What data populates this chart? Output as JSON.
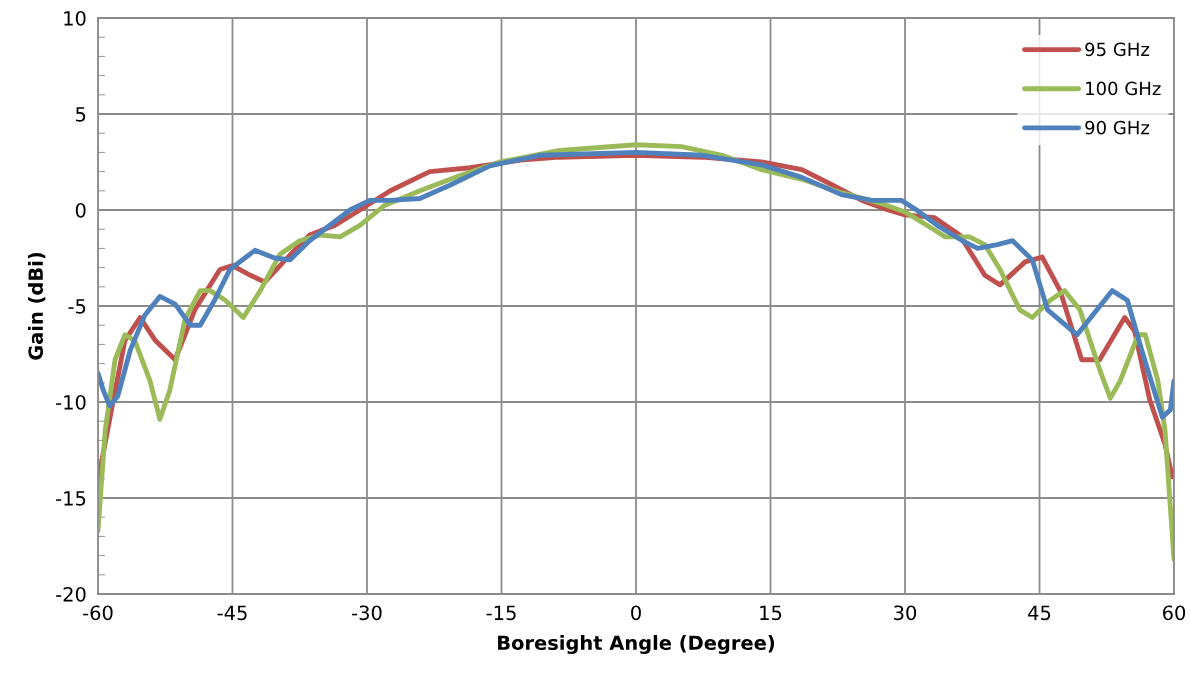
{
  "chart_data": {
    "type": "line",
    "xlabel": "Boresight Angle (Degree)",
    "ylabel": "Gain (dBi)",
    "xlim": [
      -60,
      60
    ],
    "xticks": [
      -60,
      -45,
      -30,
      -15,
      0,
      15,
      30,
      45,
      60
    ],
    "ylim": [
      -20,
      10
    ],
    "yticks": [
      -20,
      {
        "value": -19,
        "label": null
      },
      {
        "value": -18,
        "label": null
      },
      {
        "value": -17,
        "label": null
      },
      {
        "value": -16,
        "label": null
      },
      -15,
      {
        "value": -14,
        "label": null
      },
      {
        "value": -13,
        "label": null
      },
      {
        "value": -12,
        "label": null
      },
      {
        "value": -11,
        "label": null
      },
      -10,
      {
        "value": -9,
        "label": null
      },
      {
        "value": -8,
        "label": null
      },
      {
        "value": -7,
        "label": null
      },
      {
        "value": -6,
        "label": null
      },
      -5,
      {
        "value": -4,
        "label": null
      },
      {
        "value": -3,
        "label": null
      },
      {
        "value": -2,
        "label": null
      },
      {
        "value": -1,
        "label": null
      },
      0,
      {
        "value": 1,
        "label": null
      },
      {
        "value": 2,
        "label": null
      },
      {
        "value": 3,
        "label": null
      },
      {
        "value": 4,
        "label": null
      },
      5,
      {
        "value": 6,
        "label": null
      },
      {
        "value": 7,
        "label": null
      },
      {
        "value": 8,
        "label": null
      },
      {
        "value": 9,
        "label": null
      },
      10
    ],
    "grid": true,
    "legend": "top right",
    "line_style": "solid",
    "marker": "none",
    "series": [
      {
        "name": "95 GHz",
        "color": "#c0504d",
        "x": [
          -60,
          -58.7,
          -57,
          -55.3,
          -53.6,
          -51.4,
          -49.2,
          -46.4,
          -45,
          -43,
          -41.4,
          -39.1,
          -36.4,
          -33.6,
          -30.8,
          -27.4,
          -23,
          -18.5,
          -12.9,
          -8.5,
          0,
          7.4,
          14,
          18.5,
          21.9,
          25.2,
          27.5,
          30,
          33.3,
          36.1,
          38.9,
          40.6,
          43.4,
          45.3,
          47.3,
          49.7,
          51.7,
          54.5,
          55.6,
          57.3,
          59,
          59.8
        ],
        "values": [
          -14.1,
          -10.9,
          -6.8,
          -5.6,
          -6.8,
          -7.8,
          -5.2,
          -3.1,
          -2.9,
          -3.4,
          -3.75,
          -2.6,
          -1.3,
          -0.8,
          0,
          1.0,
          2.0,
          2.2,
          2.6,
          2.75,
          2.85,
          2.75,
          2.5,
          2.1,
          1.3,
          0.5,
          0.1,
          -0.25,
          -0.4,
          -1.3,
          -3.4,
          -3.9,
          -2.7,
          -2.45,
          -4.2,
          -7.8,
          -7.8,
          -5.6,
          -6.3,
          -9.9,
          -12.2,
          -13.9
        ]
      },
      {
        "name": "100 GHz",
        "color": "#9bbb59",
        "x": [
          -60,
          -59.2,
          -58.1,
          -57,
          -55.9,
          -54.2,
          -53.1,
          -52,
          -50.3,
          -48.6,
          -47.5,
          -45.8,
          -43.8,
          -41.9,
          -39.7,
          -37.5,
          -35.2,
          -33,
          -30.8,
          -28,
          -24.1,
          -19.6,
          -15.2,
          -8.5,
          0,
          5.1,
          9.6,
          14,
          18.5,
          22.9,
          27.3,
          30,
          32.8,
          34.5,
          37.2,
          38.9,
          40.6,
          42.8,
          44.2,
          46.2,
          47.8,
          49.5,
          51.7,
          52.9,
          54,
          56,
          56.8,
          58.2,
          59,
          60
        ],
        "values": [
          -16.7,
          -11.5,
          -7.8,
          -6.5,
          -6.8,
          -8.9,
          -10.9,
          -9.4,
          -5.7,
          -4.2,
          -4.2,
          -4.7,
          -5.6,
          -4.2,
          -2.3,
          -1.6,
          -1.3,
          -1.4,
          -0.8,
          0.25,
          1.0,
          1.8,
          2.5,
          3.1,
          3.4,
          3.3,
          2.85,
          2.1,
          1.6,
          0.9,
          0.35,
          -0.1,
          -0.9,
          -1.4,
          -1.4,
          -1.8,
          -3.1,
          -5.2,
          -5.6,
          -4.7,
          -4.2,
          -5.2,
          -8.3,
          -9.8,
          -8.9,
          -6.5,
          -6.5,
          -8.9,
          -11.5,
          -18.2
        ]
      },
      {
        "name": "90 GHz",
        "color": "#4f81bd",
        "x": [
          -60,
          -59.4,
          -58.7,
          -57.8,
          -56.4,
          -54.8,
          -53.1,
          -51.4,
          -49.7,
          -48.6,
          -47,
          -45.3,
          -42.5,
          -40.3,
          -38.6,
          -36.4,
          -33.6,
          -31.9,
          -29.7,
          -27.4,
          -24.1,
          -20.7,
          -16.3,
          -10.7,
          0,
          7.4,
          14,
          18.5,
          22.9,
          26.3,
          29.6,
          31.3,
          33.6,
          36.4,
          38.1,
          40.3,
          42,
          44.2,
          45.9,
          49.2,
          50.9,
          53.1,
          54.8,
          56.4,
          58.7,
          59.6,
          60
        ],
        "values": [
          -8.5,
          -9.4,
          -10.2,
          -9.7,
          -7.3,
          -5.5,
          -4.5,
          -4.9,
          -6.0,
          -6.0,
          -4.7,
          -3.1,
          -2.1,
          -2.5,
          -2.6,
          -1.6,
          -0.6,
          0,
          0.5,
          0.5,
          0.6,
          1.3,
          2.3,
          2.85,
          3.0,
          2.85,
          2.35,
          1.7,
          0.8,
          0.5,
          0.5,
          0,
          -0.8,
          -1.6,
          -2.0,
          -1.8,
          -1.6,
          -2.6,
          -5.2,
          -6.5,
          -5.5,
          -4.2,
          -4.7,
          -7.3,
          -10.8,
          -10.4,
          -8.9
        ]
      }
    ]
  }
}
